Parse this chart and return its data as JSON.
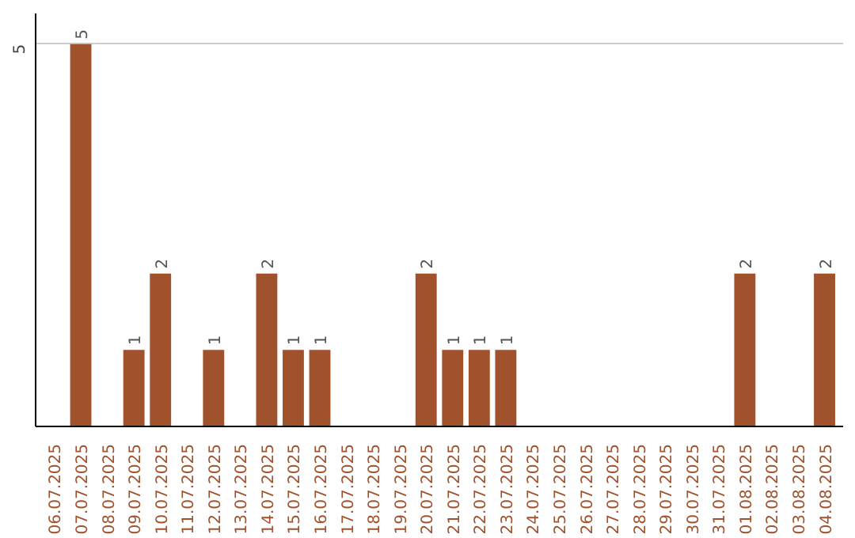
{
  "chart_data": {
    "type": "bar",
    "categories": [
      "06.07.2025",
      "07.07.2025",
      "08.07.2025",
      "09.07.2025",
      "10.07.2025",
      "11.07.2025",
      "12.07.2025",
      "13.07.2025",
      "14.07.2025",
      "15.07.2025",
      "16.07.2025",
      "17.07.2025",
      "18.07.2025",
      "19.07.2025",
      "20.07.2025",
      "21.07.2025",
      "22.07.2025",
      "23.07.2025",
      "24.07.2025",
      "25.07.2025",
      "26.07.2025",
      "27.07.2025",
      "28.07.2025",
      "29.07.2025",
      "30.07.2025",
      "31.07.2025",
      "01.08.2025",
      "02.08.2025",
      "03.08.2025",
      "04.08.2025"
    ],
    "values": [
      0,
      5,
      0,
      1,
      2,
      0,
      1,
      0,
      2,
      1,
      1,
      0,
      0,
      0,
      2,
      1,
      1,
      1,
      0,
      0,
      0,
      0,
      0,
      0,
      0,
      0,
      2,
      0,
      0,
      2
    ],
    "value_labels": [
      null,
      "5",
      null,
      "1",
      "2",
      null,
      "1",
      null,
      "2",
      "1",
      "1",
      null,
      null,
      null,
      "2",
      "1",
      "1",
      "1",
      null,
      null,
      null,
      null,
      null,
      null,
      null,
      null,
      "2",
      null,
      null,
      "2"
    ],
    "color": "#a0522d",
    "ylim": [
      0,
      5.4
    ],
    "yticks": [
      5
    ],
    "grid": "y"
  }
}
